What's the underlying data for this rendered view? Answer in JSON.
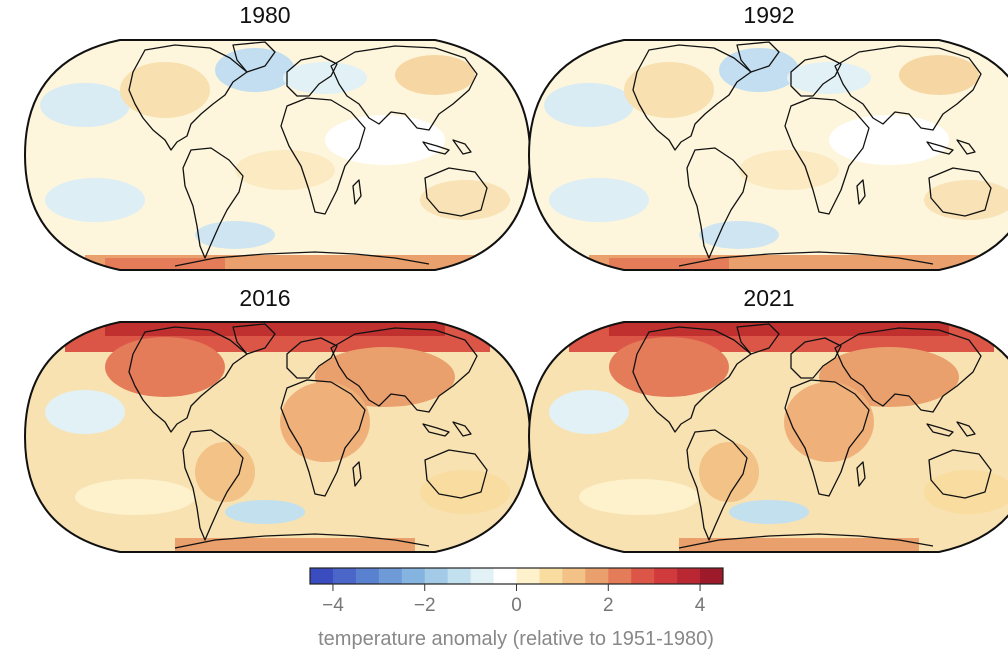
{
  "panels": [
    {
      "title": "1980",
      "style": "mild"
    },
    {
      "title": "1992",
      "style": "mild"
    },
    {
      "title": "2016",
      "style": "warm"
    },
    {
      "title": "2021",
      "style": "warm"
    }
  ],
  "colorbar": {
    "label": "temperature anomaly (relative to 1951-1980)",
    "ticks": [
      "−4",
      "−2",
      "0",
      "2",
      "4"
    ],
    "tick_values": [
      -4,
      -2,
      0,
      2,
      4
    ],
    "range": [
      -4.5,
      4.5
    ],
    "colors": [
      "#3b4cc0",
      "#4a66c8",
      "#5a80d0",
      "#6e9bd8",
      "#86b4e0",
      "#a3cbe8",
      "#c3e0ef",
      "#e2f1f5",
      "#ffffff",
      "#fdf2cc",
      "#f8dca0",
      "#f2c287",
      "#eaa06c",
      "#e47c59",
      "#dc5648",
      "#d13a3c",
      "#b92832",
      "#9c1a2a"
    ]
  }
}
